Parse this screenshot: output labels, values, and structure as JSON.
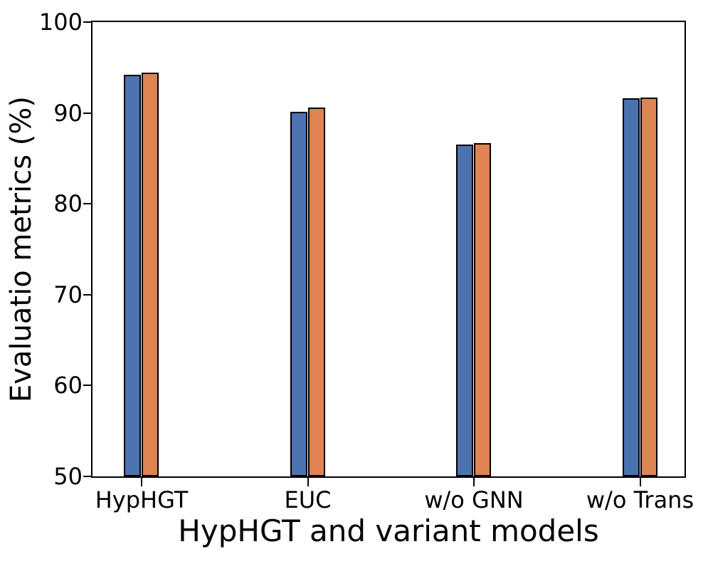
{
  "chart_data": {
    "type": "bar",
    "title": "",
    "xlabel": "HypHGT and variant models",
    "ylabel": "Evaluatio metrics (%)",
    "categories": [
      "HypHGT",
      "EUC",
      "w/o GNN",
      "w/o Trans"
    ],
    "series": [
      {
        "name": "blue-series",
        "color": "#4C72B0",
        "values": [
          94.2,
          90.1,
          86.5,
          91.6
        ]
      },
      {
        "name": "orange-series",
        "color": "#DD8452",
        "values": [
          94.4,
          90.6,
          86.7,
          91.7
        ]
      }
    ],
    "bar_edge_color": "#000000",
    "ylim": [
      50,
      100
    ],
    "yticks": [
      50,
      60,
      70,
      80,
      90,
      100
    ],
    "grid": false,
    "legend": "none"
  }
}
